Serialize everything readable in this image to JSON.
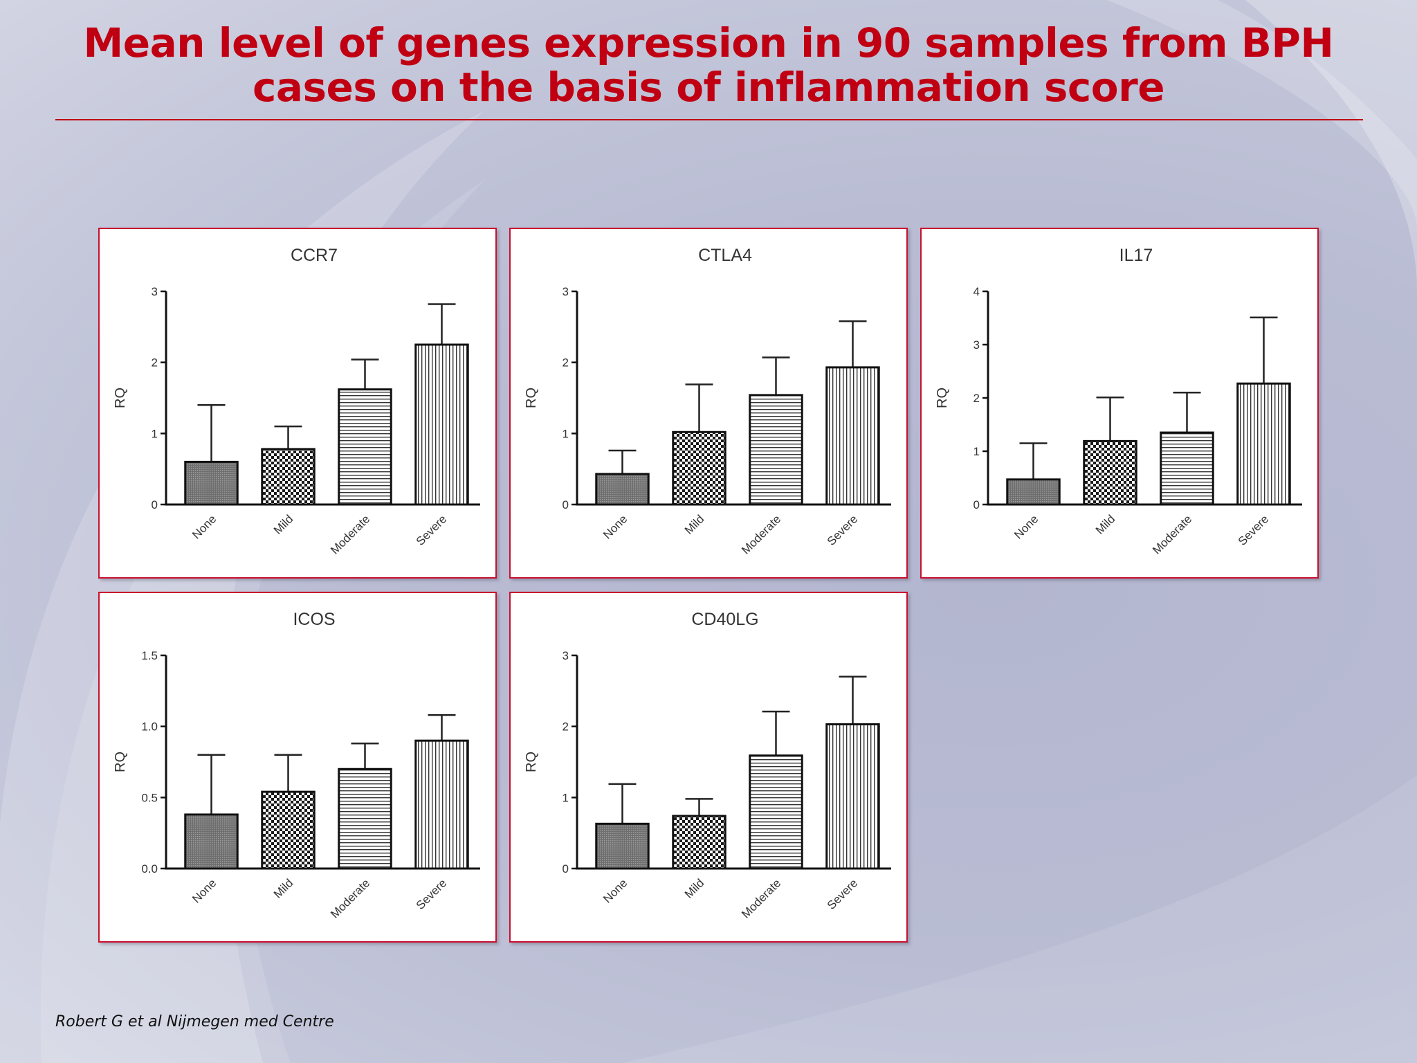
{
  "title": "Mean level of genes expression in 90 samples from BPH cases on the basis of inflammation score",
  "source": "Robert G et al Nijmegen med Centre",
  "colors": {
    "title": "#c00012",
    "panel_border": "#c8102e"
  },
  "chart_data": [
    {
      "type": "bar",
      "title": "CCR7",
      "ylabel": "RQ",
      "categories": [
        "None",
        "Mild",
        "Moderate",
        "Severe"
      ],
      "values": [
        0.6,
        0.78,
        1.62,
        2.25
      ],
      "error_upper": [
        1.4,
        1.1,
        2.04,
        2.82
      ],
      "ylim": [
        0,
        3
      ],
      "yticks": [
        "0",
        "1",
        "2",
        "3"
      ],
      "ytick_values": [
        0,
        1,
        2,
        3
      ]
    },
    {
      "type": "bar",
      "title": "CTLA4",
      "ylabel": "RQ",
      "categories": [
        "None",
        "Mild",
        "Moderate",
        "Severe"
      ],
      "values": [
        0.43,
        1.02,
        1.54,
        1.93
      ],
      "error_upper": [
        0.76,
        1.69,
        2.07,
        2.58
      ],
      "ylim": [
        0,
        3
      ],
      "yticks": [
        "0",
        "1",
        "2",
        "3"
      ],
      "ytick_values": [
        0,
        1,
        2,
        3
      ]
    },
    {
      "type": "bar",
      "title": "IL17",
      "ylabel": "RQ",
      "categories": [
        "None",
        "Mild",
        "Moderate",
        "Severe"
      ],
      "values": [
        0.47,
        1.19,
        1.35,
        2.27
      ],
      "error_upper": [
        1.15,
        2.01,
        2.1,
        3.51
      ],
      "ylim": [
        0,
        4
      ],
      "yticks": [
        "0",
        "1",
        "2",
        "3",
        "4"
      ],
      "ytick_values": [
        0,
        1,
        2,
        3,
        4
      ]
    },
    {
      "type": "bar",
      "title": "ICOS",
      "ylabel": "RQ",
      "categories": [
        "None",
        "Mild",
        "Moderate",
        "Severe"
      ],
      "values": [
        0.38,
        0.54,
        0.7,
        0.9
      ],
      "error_upper": [
        0.8,
        0.8,
        0.88,
        1.08
      ],
      "ylim": [
        0,
        1.5
      ],
      "yticks": [
        "0.0",
        "0.5",
        "1.0",
        "1.5"
      ],
      "ytick_values": [
        0,
        0.5,
        1.0,
        1.5
      ]
    },
    {
      "type": "bar",
      "title": "CD40LG",
      "ylabel": "RQ",
      "categories": [
        "None",
        "Mild",
        "Moderate",
        "Severe"
      ],
      "values": [
        0.63,
        0.74,
        1.59,
        2.03
      ],
      "error_upper": [
        1.19,
        0.98,
        2.21,
        2.7
      ],
      "ylim": [
        0,
        3
      ],
      "yticks": [
        "0",
        "1",
        "2",
        "3"
      ],
      "ytick_values": [
        0,
        1,
        2,
        3
      ]
    }
  ]
}
